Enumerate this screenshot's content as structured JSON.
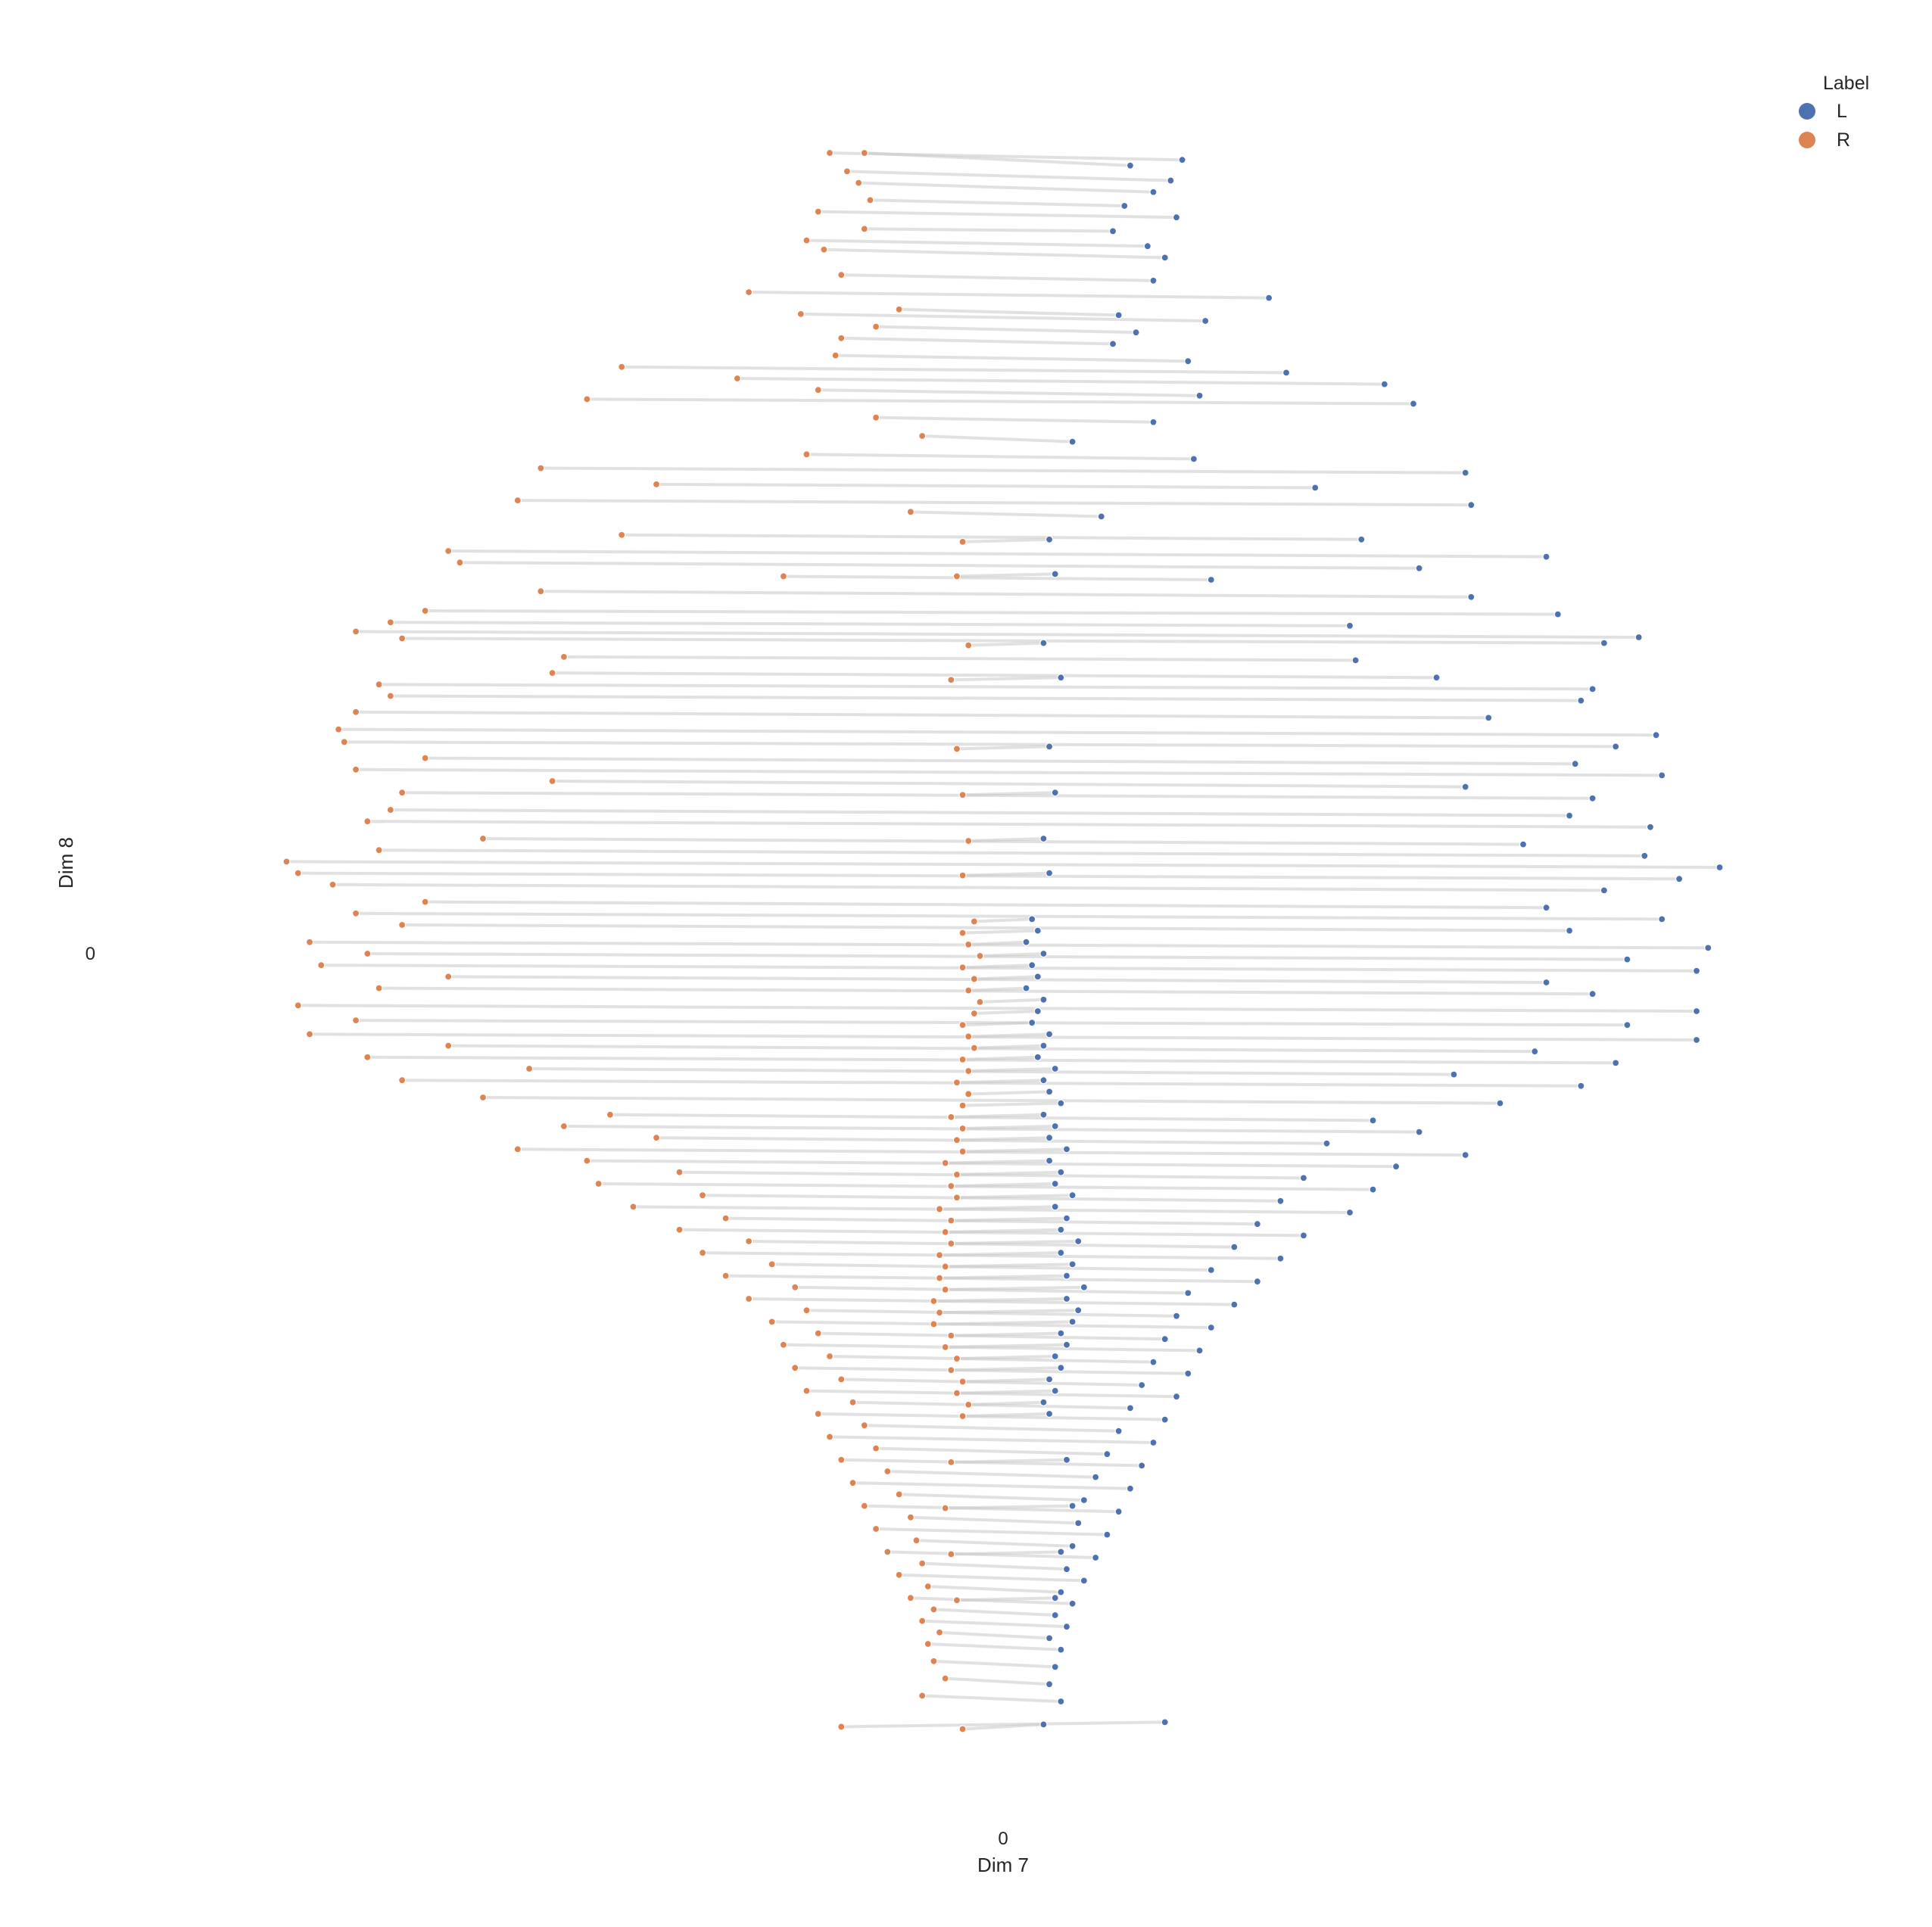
{
  "chart_data": {
    "type": "scatter",
    "title": "",
    "xlabel": "Dim 7",
    "ylabel": "Dim 8",
    "x_ticks": [
      "0"
    ],
    "y_ticks": [
      "0"
    ],
    "xlim": [
      -7.5,
      7.5
    ],
    "ylim": [
      -7.5,
      7.5
    ],
    "grid": false,
    "legend": {
      "title": "Label",
      "placement": "top-right",
      "entries": [
        "L",
        "R"
      ]
    },
    "colors": {
      "L": "#4c72b0",
      "R": "#dd8452",
      "link": "#c8c8c8",
      "marker_edge": "#ffffff"
    },
    "series": [
      {
        "name": "L",
        "marker": "circle"
      },
      {
        "name": "R",
        "marker": "circle"
      }
    ],
    "pairs_note_values_description": "Each pair links an L point (x, y) to an R point (x, y) by a gray line",
    "pairs": [
      [
        1.55,
        6.9,
        -1.5,
        6.96
      ],
      [
        1.1,
        6.85,
        -1.2,
        6.96
      ],
      [
        1.45,
        6.72,
        -1.35,
        6.8
      ],
      [
        1.3,
        6.62,
        -1.25,
        6.7
      ],
      [
        1.05,
        6.5,
        -1.15,
        6.55
      ],
      [
        1.5,
        6.4,
        -1.6,
        6.45
      ],
      [
        0.95,
        6.28,
        -1.2,
        6.3
      ],
      [
        1.25,
        6.15,
        -1.7,
        6.2
      ],
      [
        1.4,
        6.05,
        -1.55,
        6.12
      ],
      [
        1.3,
        5.85,
        -1.4,
        5.9
      ],
      [
        2.3,
        5.7,
        -2.2,
        5.75
      ],
      [
        1.0,
        5.55,
        -0.9,
        5.6
      ],
      [
        1.75,
        5.5,
        -1.75,
        5.56
      ],
      [
        1.15,
        5.4,
        -1.1,
        5.45
      ],
      [
        0.95,
        5.3,
        -1.4,
        5.35
      ],
      [
        1.6,
        5.15,
        -1.45,
        5.2
      ],
      [
        2.45,
        5.05,
        -3.3,
        5.1
      ],
      [
        3.3,
        4.95,
        -2.3,
        5.0
      ],
      [
        1.7,
        4.85,
        -1.6,
        4.9
      ],
      [
        3.55,
        4.78,
        -3.6,
        4.82
      ],
      [
        1.3,
        4.62,
        -1.1,
        4.66
      ],
      [
        0.6,
        4.45,
        -0.7,
        4.5
      ],
      [
        1.65,
        4.3,
        -1.7,
        4.34
      ],
      [
        4.0,
        4.18,
        -4.0,
        4.22
      ],
      [
        2.7,
        4.05,
        -3.0,
        4.08
      ],
      [
        4.05,
        3.9,
        -4.2,
        3.94
      ],
      [
        0.85,
        3.8,
        -0.8,
        3.84
      ],
      [
        3.1,
        3.6,
        -3.3,
        3.64
      ],
      [
        4.7,
        3.45,
        -4.8,
        3.5
      ],
      [
        3.6,
        3.35,
        -4.7,
        3.4
      ],
      [
        1.8,
        3.25,
        -1.9,
        3.28
      ],
      [
        4.05,
        3.1,
        -4.0,
        3.15
      ],
      [
        4.8,
        2.95,
        -5.0,
        2.98
      ],
      [
        3.0,
        2.85,
        -5.3,
        2.88
      ],
      [
        5.5,
        2.75,
        -5.6,
        2.8
      ],
      [
        5.2,
        2.7,
        -5.2,
        2.74
      ],
      [
        3.05,
        2.55,
        -3.8,
        2.58
      ],
      [
        3.75,
        2.4,
        -3.9,
        2.44
      ],
      [
        5.1,
        2.3,
        -5.4,
        2.34
      ],
      [
        5.0,
        2.2,
        -5.3,
        2.24
      ],
      [
        4.2,
        2.05,
        -5.6,
        2.1
      ],
      [
        5.65,
        1.9,
        -5.75,
        1.95
      ],
      [
        5.3,
        1.8,
        -5.7,
        1.84
      ],
      [
        4.95,
        1.65,
        -5.0,
        1.7
      ],
      [
        5.7,
        1.55,
        -5.6,
        1.6
      ],
      [
        4.0,
        1.45,
        -3.9,
        1.5
      ],
      [
        5.1,
        1.35,
        -5.2,
        1.4
      ],
      [
        4.9,
        1.2,
        -5.3,
        1.25
      ],
      [
        5.6,
        1.1,
        -5.5,
        1.15
      ],
      [
        4.5,
        0.95,
        -4.5,
        1.0
      ],
      [
        5.55,
        0.85,
        -5.4,
        0.9
      ],
      [
        6.2,
        0.75,
        -6.2,
        0.8
      ],
      [
        5.85,
        0.65,
        -6.1,
        0.7
      ],
      [
        5.2,
        0.55,
        -5.8,
        0.6
      ],
      [
        4.7,
        0.4,
        -5.0,
        0.45
      ],
      [
        5.7,
        0.3,
        -5.6,
        0.35
      ],
      [
        4.9,
        0.2,
        -5.2,
        0.25
      ],
      [
        6.1,
        0.05,
        -6.0,
        0.1
      ],
      [
        5.4,
        -0.05,
        -5.5,
        0.0
      ],
      [
        6.0,
        -0.15,
        -5.9,
        -0.1
      ],
      [
        4.7,
        -0.25,
        -4.8,
        -0.2
      ],
      [
        5.1,
        -0.35,
        -5.4,
        -0.3
      ],
      [
        6.0,
        -0.5,
        -6.1,
        -0.45
      ],
      [
        5.4,
        -0.62,
        -5.6,
        -0.58
      ],
      [
        6.0,
        -0.75,
        -6.0,
        -0.7
      ],
      [
        4.6,
        -0.85,
        -4.8,
        -0.8
      ],
      [
        5.3,
        -0.95,
        -5.5,
        -0.9
      ],
      [
        3.9,
        -1.05,
        -4.1,
        -1.0
      ],
      [
        5.0,
        -1.15,
        -5.2,
        -1.1
      ],
      [
        4.3,
        -1.3,
        -4.5,
        -1.25
      ],
      [
        3.2,
        -1.45,
        -3.4,
        -1.4
      ],
      [
        3.6,
        -1.55,
        -3.8,
        -1.5
      ],
      [
        2.8,
        -1.65,
        -3.0,
        -1.6
      ],
      [
        4.0,
        -1.75,
        -4.2,
        -1.7
      ],
      [
        3.4,
        -1.85,
        -3.6,
        -1.8
      ],
      [
        2.6,
        -1.95,
        -2.8,
        -1.9
      ],
      [
        3.2,
        -2.05,
        -3.5,
        -2.0
      ],
      [
        2.4,
        -2.15,
        -2.6,
        -2.1
      ],
      [
        3.0,
        -2.25,
        -3.2,
        -2.2
      ],
      [
        2.2,
        -2.35,
        -2.4,
        -2.3
      ],
      [
        2.6,
        -2.45,
        -2.8,
        -2.4
      ],
      [
        2.0,
        -2.55,
        -2.2,
        -2.5
      ],
      [
        2.4,
        -2.65,
        -2.6,
        -2.6
      ],
      [
        1.8,
        -2.75,
        -2.0,
        -2.7
      ],
      [
        2.2,
        -2.85,
        -2.4,
        -2.8
      ],
      [
        1.6,
        -2.95,
        -1.8,
        -2.9
      ],
      [
        2.0,
        -3.05,
        -2.2,
        -3.0
      ],
      [
        1.5,
        -3.15,
        -1.7,
        -3.1
      ],
      [
        1.8,
        -3.25,
        -2.0,
        -3.2
      ],
      [
        1.4,
        -3.35,
        -1.6,
        -3.3
      ],
      [
        1.7,
        -3.45,
        -1.9,
        -3.4
      ],
      [
        1.3,
        -3.55,
        -1.5,
        -3.5
      ],
      [
        1.6,
        -3.65,
        -1.8,
        -3.6
      ],
      [
        1.2,
        -3.75,
        -1.4,
        -3.7
      ],
      [
        1.5,
        -3.85,
        -1.7,
        -3.8
      ],
      [
        1.1,
        -3.95,
        -1.3,
        -3.9
      ],
      [
        1.4,
        -4.05,
        -1.6,
        -4.0
      ],
      [
        1.0,
        -4.15,
        -1.2,
        -4.1
      ],
      [
        1.3,
        -4.25,
        -1.5,
        -4.2
      ],
      [
        0.9,
        -4.35,
        -1.1,
        -4.3
      ],
      [
        1.2,
        -4.45,
        -1.4,
        -4.4
      ],
      [
        0.8,
        -4.55,
        -1.0,
        -4.5
      ],
      [
        1.1,
        -4.65,
        -1.3,
        -4.6
      ],
      [
        0.7,
        -4.75,
        -0.9,
        -4.7
      ],
      [
        1.0,
        -4.85,
        -1.2,
        -4.8
      ],
      [
        0.65,
        -4.95,
        -0.8,
        -4.9
      ],
      [
        0.9,
        -5.05,
        -1.1,
        -5.0
      ],
      [
        0.6,
        -5.15,
        -0.75,
        -5.1
      ],
      [
        0.8,
        -5.25,
        -1.0,
        -5.2
      ],
      [
        0.55,
        -5.35,
        -0.7,
        -5.3
      ],
      [
        0.7,
        -5.45,
        -0.9,
        -5.4
      ],
      [
        0.5,
        -5.55,
        -0.65,
        -5.5
      ],
      [
        0.6,
        -5.65,
        -0.8,
        -5.6
      ],
      [
        0.45,
        -5.75,
        -0.6,
        -5.7
      ],
      [
        0.55,
        -5.85,
        -0.7,
        -5.8
      ],
      [
        0.4,
        -5.95,
        -0.55,
        -5.9
      ],
      [
        0.5,
        -6.05,
        -0.65,
        -6.0
      ],
      [
        0.45,
        -6.2,
        -0.6,
        -6.15
      ],
      [
        0.4,
        -6.35,
        -0.5,
        -6.3
      ],
      [
        0.5,
        -6.5,
        -0.7,
        -6.45
      ],
      [
        1.4,
        -6.68,
        -1.4,
        -6.72
      ],
      [
        0.35,
        -6.7,
        -0.35,
        -6.74
      ],
      [
        0.25,
        0.3,
        -0.25,
        0.28
      ],
      [
        0.3,
        0.2,
        -0.35,
        0.18
      ],
      [
        0.2,
        0.1,
        -0.3,
        0.08
      ],
      [
        0.35,
        0.0,
        -0.2,
        -0.02
      ],
      [
        0.25,
        -0.1,
        -0.35,
        -0.12
      ],
      [
        0.3,
        -0.2,
        -0.25,
        -0.22
      ],
      [
        0.2,
        -0.3,
        -0.3,
        -0.32
      ],
      [
        0.35,
        -0.4,
        -0.2,
        -0.42
      ],
      [
        0.3,
        -0.5,
        -0.25,
        -0.52
      ],
      [
        0.25,
        -0.6,
        -0.35,
        -0.62
      ],
      [
        0.4,
        -0.7,
        -0.3,
        -0.72
      ],
      [
        0.35,
        -0.8,
        -0.25,
        -0.82
      ],
      [
        0.3,
        -0.9,
        -0.35,
        -0.92
      ],
      [
        0.45,
        -1.0,
        -0.3,
        -1.02
      ],
      [
        0.35,
        -1.1,
        -0.4,
        -1.12
      ],
      [
        0.4,
        -1.2,
        -0.3,
        -1.22
      ],
      [
        0.5,
        -1.3,
        -0.35,
        -1.32
      ],
      [
        0.35,
        -1.4,
        -0.45,
        -1.42
      ],
      [
        0.45,
        -1.5,
        -0.35,
        -1.52
      ],
      [
        0.4,
        -1.6,
        -0.4,
        -1.62
      ],
      [
        0.55,
        -1.7,
        -0.35,
        -1.72
      ],
      [
        0.4,
        -1.8,
        -0.5,
        -1.82
      ],
      [
        0.5,
        -1.9,
        -0.4,
        -1.92
      ],
      [
        0.45,
        -2.0,
        -0.45,
        -2.02
      ],
      [
        0.6,
        -2.1,
        -0.4,
        -2.12
      ],
      [
        0.45,
        -2.2,
        -0.55,
        -2.22
      ],
      [
        0.55,
        -2.3,
        -0.45,
        -2.32
      ],
      [
        0.5,
        -2.4,
        -0.5,
        -2.42
      ],
      [
        0.65,
        -2.5,
        -0.45,
        -2.52
      ],
      [
        0.5,
        -2.6,
        -0.55,
        -2.62
      ],
      [
        0.6,
        -2.7,
        -0.5,
        -2.72
      ],
      [
        0.55,
        -2.8,
        -0.55,
        -2.82
      ],
      [
        0.7,
        -2.9,
        -0.5,
        -2.92
      ],
      [
        0.55,
        -3.0,
        -0.6,
        -3.02
      ],
      [
        0.65,
        -3.1,
        -0.55,
        -3.12
      ],
      [
        0.6,
        -3.2,
        -0.6,
        -3.22
      ],
      [
        0.5,
        -3.3,
        -0.45,
        -3.32
      ],
      [
        0.55,
        -3.4,
        -0.5,
        -3.42
      ],
      [
        0.45,
        -3.5,
        -0.4,
        -3.52
      ],
      [
        0.5,
        -3.6,
        -0.45,
        -3.62
      ],
      [
        0.4,
        -3.7,
        -0.35,
        -3.72
      ],
      [
        0.45,
        -3.8,
        -0.4,
        -3.82
      ],
      [
        0.35,
        -3.9,
        -0.3,
        -3.92
      ],
      [
        0.4,
        -4.0,
        -0.35,
        -4.02
      ],
      [
        0.55,
        -4.4,
        -0.45,
        -4.42
      ],
      [
        0.6,
        -4.8,
        -0.5,
        -4.82
      ],
      [
        0.5,
        -5.2,
        -0.45,
        -5.22
      ],
      [
        0.45,
        -5.6,
        -0.4,
        -5.62
      ],
      [
        0.4,
        1.8,
        -0.4,
        1.78
      ],
      [
        0.45,
        1.4,
        -0.35,
        1.38
      ],
      [
        0.35,
        1.0,
        -0.3,
        0.98
      ],
      [
        0.4,
        0.7,
        -0.35,
        0.68
      ],
      [
        0.5,
        2.4,
        -0.45,
        2.38
      ],
      [
        0.35,
        2.7,
        -0.3,
        2.68
      ],
      [
        0.45,
        3.3,
        -0.4,
        3.28
      ],
      [
        0.4,
        3.6,
        -0.35,
        3.58
      ]
    ]
  }
}
